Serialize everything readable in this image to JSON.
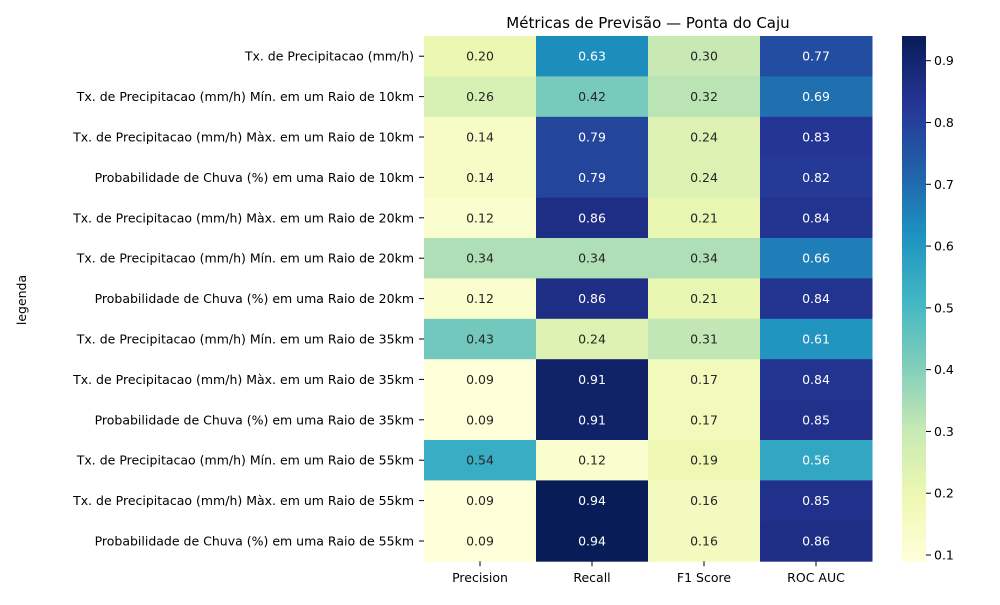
{
  "chart_data": {
    "type": "heatmap",
    "title": "Métricas de Previsão — Ponta do Caju",
    "xlabel": "",
    "ylabel": "legenda",
    "columns": [
      "Precision",
      "Recall",
      "F1 Score",
      "ROC AUC"
    ],
    "rows": [
      "Tx. de Precipitacao (mm/h)",
      "Tx. de Precipitacao (mm/h) Mín. em um Raio de 10km",
      "Tx. de Precipitacao (mm/h) Màx. em um Raio de 10km",
      "Probabilidade de Chuva (%) em uma Raio de 10km",
      "Tx. de Precipitacao (mm/h) Màx. em um Raio de 20km",
      "Tx. de Precipitacao (mm/h) Mín. em um Raio de 20km",
      "Probabilidade de Chuva (%) em uma Raio de 20km",
      "Tx. de Precipitacao (mm/h) Mín. em um Raio de 35km",
      "Tx. de Precipitacao (mm/h) Màx. em um Raio de 35km",
      "Probabilidade de Chuva (%) em uma Raio de 35km",
      "Tx. de Precipitacao (mm/h) Mín. em um Raio de 55km",
      "Tx. de Precipitacao (mm/h) Màx. em um Raio de 55km",
      "Probabilidade de Chuva (%) em uma Raio de 55km"
    ],
    "values": [
      [
        0.2,
        0.63,
        0.3,
        0.77
      ],
      [
        0.26,
        0.42,
        0.32,
        0.69
      ],
      [
        0.14,
        0.79,
        0.24,
        0.83
      ],
      [
        0.14,
        0.79,
        0.24,
        0.82
      ],
      [
        0.12,
        0.86,
        0.21,
        0.84
      ],
      [
        0.34,
        0.34,
        0.34,
        0.66
      ],
      [
        0.12,
        0.86,
        0.21,
        0.84
      ],
      [
        0.43,
        0.24,
        0.31,
        0.61
      ],
      [
        0.09,
        0.91,
        0.17,
        0.84
      ],
      [
        0.09,
        0.91,
        0.17,
        0.85
      ],
      [
        0.54,
        0.12,
        0.19,
        0.56
      ],
      [
        0.09,
        0.94,
        0.16,
        0.85
      ],
      [
        0.09,
        0.94,
        0.16,
        0.86
      ]
    ],
    "colormap": "YlGnBu",
    "color_range": [
      0.09,
      0.94
    ],
    "colorbar_ticks": [
      0.1,
      0.2,
      0.3,
      0.4,
      0.5,
      0.6,
      0.7,
      0.8,
      0.9
    ],
    "annotation_format": "0.00",
    "grid": false
  }
}
